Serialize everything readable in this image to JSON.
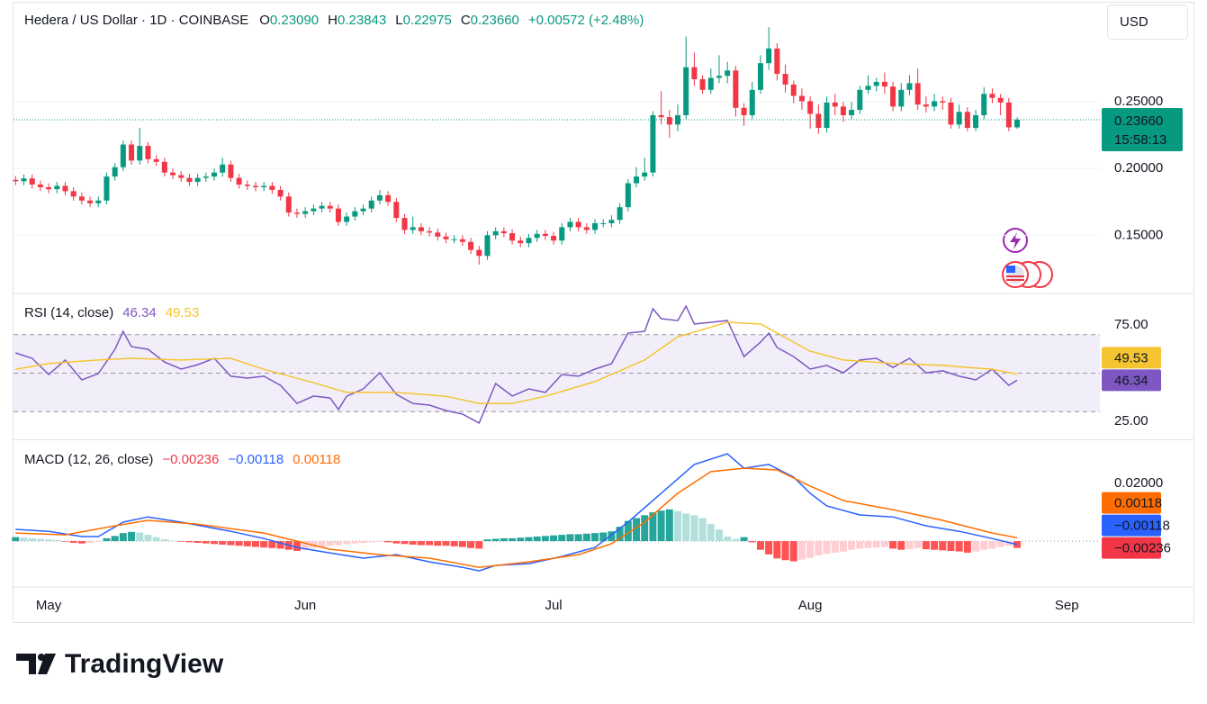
{
  "header": {
    "symbol": "Hedera / US Dollar · 1D · COINBASE",
    "open_label": "O",
    "open": "0.23090",
    "high_label": "H",
    "high": "0.23843",
    "low_label": "L",
    "low": "0.22975",
    "close_label": "C",
    "close": "0.23660",
    "change": "+0.00572 (+2.48%)"
  },
  "currency": "USD",
  "countdown": "15:58:13",
  "brand": "TradingView",
  "chart_data": [
    {
      "type": "candlestick",
      "colors": {
        "up": "#089981",
        "down": "#f23645"
      },
      "grid": true,
      "xlim": [
        -0.25,
        131
      ],
      "ylim": [
        0.107,
        0.323
      ],
      "yticks": [
        {
          "value": 0.15,
          "label": "0.15000"
        },
        {
          "value": 0.2,
          "label": "0.20000"
        },
        {
          "value": 0.25,
          "label": "0.25000"
        }
      ],
      "open": [
        0.1915,
        0.1905,
        0.1926,
        0.188,
        0.186,
        0.1845,
        0.187,
        0.183,
        0.179,
        0.176,
        0.174,
        0.176,
        0.194,
        0.201,
        0.218,
        0.206,
        0.217,
        0.207,
        0.205,
        0.197,
        0.195,
        0.193,
        0.19,
        0.193,
        0.194,
        0.197,
        0.203,
        0.193,
        0.188,
        0.187,
        0.186,
        0.187,
        0.184,
        0.179,
        0.167,
        0.166,
        0.168,
        0.17,
        0.172,
        0.17,
        0.16,
        0.164,
        0.168,
        0.17,
        0.176,
        0.18,
        0.175,
        0.163,
        0.154,
        0.156,
        0.153,
        0.152,
        0.149,
        0.147,
        0.147,
        0.145,
        0.139,
        0.1345,
        0.15,
        0.153,
        0.1515,
        0.146,
        0.144,
        0.148,
        0.151,
        0.1495,
        0.146,
        0.156,
        0.16,
        0.156,
        0.154,
        0.159,
        0.159,
        0.1615,
        0.171,
        0.189,
        0.194,
        0.197,
        0.24,
        0.2385,
        0.233,
        0.24,
        0.276,
        0.267,
        0.259,
        0.268,
        0.2695,
        0.2735,
        0.2455,
        0.24,
        0.259,
        0.279,
        0.29,
        0.271,
        0.263,
        0.2545,
        0.2505,
        0.241,
        0.2305,
        0.2495,
        0.2465,
        0.24,
        0.244,
        0.259,
        0.262,
        0.265,
        0.2615,
        0.2465,
        0.259,
        0.264,
        0.248,
        0.2465,
        0.2505,
        0.2495,
        0.233,
        0.2425,
        0.2305,
        0.24,
        0.256,
        0.253,
        0.2495,
        0.2309
      ],
      "high": [
        0.1945,
        0.1956,
        0.1956,
        0.191,
        0.189,
        0.19,
        0.19,
        0.186,
        0.182,
        0.179,
        0.179,
        0.197,
        0.204,
        0.221,
        0.221,
        0.2305,
        0.22,
        0.21,
        0.208,
        0.2,
        0.198,
        0.196,
        0.196,
        0.197,
        0.2,
        0.208,
        0.206,
        0.196,
        0.191,
        0.19,
        0.19,
        0.19,
        0.187,
        0.182,
        0.17,
        0.171,
        0.173,
        0.175,
        0.175,
        0.173,
        0.167,
        0.171,
        0.173,
        0.179,
        0.184,
        0.183,
        0.178,
        0.166,
        0.164,
        0.159,
        0.156,
        0.155,
        0.152,
        0.15,
        0.15,
        0.148,
        0.142,
        0.153,
        0.156,
        0.156,
        0.1545,
        0.149,
        0.151,
        0.154,
        0.154,
        0.1525,
        0.159,
        0.163,
        0.163,
        0.159,
        0.162,
        0.162,
        0.165,
        0.174,
        0.192,
        0.201,
        0.208,
        0.243,
        0.258,
        0.244,
        0.248,
        0.299,
        0.287,
        0.27,
        0.275,
        0.285,
        0.28,
        0.277,
        0.249,
        0.265,
        0.285,
        0.306,
        0.294,
        0.278,
        0.266,
        0.26,
        0.254,
        0.248,
        0.254,
        0.256,
        0.25,
        0.25,
        0.262,
        0.27,
        0.268,
        0.272,
        0.265,
        0.264,
        0.27,
        0.275,
        0.254,
        0.256,
        0.254,
        0.253,
        0.248,
        0.246,
        0.244,
        0.261,
        0.26,
        0.256,
        0.253,
        0.23843
      ],
      "low": [
        0.1875,
        0.1875,
        0.185,
        0.183,
        0.1815,
        0.1815,
        0.18,
        0.176,
        0.173,
        0.171,
        0.171,
        0.173,
        0.191,
        0.198,
        0.203,
        0.203,
        0.204,
        0.202,
        0.194,
        0.192,
        0.19,
        0.187,
        0.187,
        0.19,
        0.191,
        0.194,
        0.19,
        0.185,
        0.184,
        0.183,
        0.183,
        0.181,
        0.176,
        0.164,
        0.163,
        0.163,
        0.165,
        0.167,
        0.167,
        0.157,
        0.157,
        0.161,
        0.165,
        0.167,
        0.173,
        0.172,
        0.16,
        0.151,
        0.151,
        0.15,
        0.149,
        0.146,
        0.144,
        0.144,
        0.142,
        0.136,
        0.128,
        0.1315,
        0.147,
        0.1485,
        0.143,
        0.141,
        0.141,
        0.145,
        0.1465,
        0.143,
        0.143,
        0.153,
        0.153,
        0.151,
        0.151,
        0.156,
        0.156,
        0.1585,
        0.168,
        0.186,
        0.191,
        0.194,
        0.233,
        0.223,
        0.228,
        0.237,
        0.262,
        0.256,
        0.256,
        0.264,
        0.264,
        0.239,
        0.232,
        0.237,
        0.256,
        0.274,
        0.266,
        0.257,
        0.249,
        0.244,
        0.23,
        0.226,
        0.227,
        0.24,
        0.235,
        0.237,
        0.241,
        0.256,
        0.258,
        0.256,
        0.243,
        0.243,
        0.255,
        0.244,
        0.242,
        0.243,
        0.244,
        0.23,
        0.23,
        0.228,
        0.228,
        0.237,
        0.249,
        0.24,
        0.228,
        0.22975
      ],
      "close": [
        0.1905,
        0.1926,
        0.188,
        0.186,
        0.1845,
        0.187,
        0.183,
        0.179,
        0.176,
        0.174,
        0.176,
        0.194,
        0.201,
        0.218,
        0.206,
        0.217,
        0.207,
        0.205,
        0.197,
        0.195,
        0.193,
        0.19,
        0.193,
        0.194,
        0.197,
        0.203,
        0.193,
        0.188,
        0.187,
        0.186,
        0.187,
        0.184,
        0.179,
        0.167,
        0.166,
        0.168,
        0.17,
        0.172,
        0.17,
        0.16,
        0.164,
        0.168,
        0.17,
        0.176,
        0.18,
        0.175,
        0.163,
        0.154,
        0.156,
        0.153,
        0.152,
        0.149,
        0.147,
        0.147,
        0.145,
        0.139,
        0.1345,
        0.15,
        0.153,
        0.1515,
        0.146,
        0.144,
        0.148,
        0.151,
        0.1495,
        0.146,
        0.156,
        0.16,
        0.156,
        0.154,
        0.159,
        0.159,
        0.1615,
        0.171,
        0.189,
        0.194,
        0.197,
        0.24,
        0.2385,
        0.233,
        0.24,
        0.276,
        0.267,
        0.259,
        0.268,
        0.2695,
        0.2735,
        0.2455,
        0.24,
        0.259,
        0.279,
        0.29,
        0.271,
        0.263,
        0.2545,
        0.2505,
        0.241,
        0.2305,
        0.2495,
        0.2465,
        0.24,
        0.244,
        0.259,
        0.262,
        0.265,
        0.2615,
        0.2465,
        0.259,
        0.264,
        0.248,
        0.2465,
        0.2505,
        0.2495,
        0.233,
        0.2425,
        0.2305,
        0.24,
        0.256,
        0.253,
        0.2495,
        0.2309,
        0.2366
      ]
    },
    {
      "type": "indicator",
      "title": "RSI (14, close)",
      "readouts": [
        "46.34",
        "49.53"
      ],
      "grid": false,
      "xlim": [
        -0.25,
        131
      ],
      "ylim": [
        16.1,
        90.9
      ],
      "yticks": [
        {
          "value": 25,
          "label": "25.00"
        },
        {
          "value": 75,
          "label": "75.00"
        }
      ],
      "band": [
        30,
        70
      ],
      "band_color": "rgba(126,87,194,0.1)",
      "levels": [
        70,
        50,
        30
      ],
      "series": [
        {
          "style": "line",
          "color": "#7e57c2",
          "x": [
            0,
            2,
            4,
            6,
            8,
            10,
            12,
            13,
            14,
            16,
            18,
            20,
            22,
            24,
            26,
            28,
            30,
            32,
            34,
            36,
            38,
            39,
            40,
            42,
            44,
            46,
            48,
            50,
            52,
            54,
            56,
            58,
            60,
            62,
            64,
            66,
            68,
            70,
            72,
            74,
            76,
            77,
            78,
            80,
            81,
            82,
            84,
            86,
            88,
            90,
            91,
            92,
            94,
            96,
            98,
            100,
            102,
            104,
            106,
            108,
            110,
            112,
            114,
            116,
            118,
            120,
            121
          ],
          "values": [
            60.5,
            57.7,
            49.3,
            56.8,
            46.5,
            49.8,
            62.4,
            71.7,
            63.8,
            62.4,
            55.8,
            52.1,
            54.4,
            57.7,
            48.4,
            47.4,
            48.4,
            43.7,
            34.3,
            38.1,
            37.1,
            31.1,
            38,
            41.8,
            50.2,
            39,
            34.3,
            33.4,
            30.6,
            28.7,
            24.1,
            44.6,
            38.1,
            41.8,
            40,
            49.3,
            48.4,
            52.1,
            54.9,
            70.8,
            71.7,
            83.4,
            78.3,
            77.3,
            84.8,
            75.5,
            76.4,
            77.3,
            58.6,
            66.1,
            70.8,
            63.3,
            58.6,
            52.1,
            54,
            50.2,
            56.8,
            57.7,
            53,
            57.7,
            50.2,
            51.2,
            48.4,
            46.5,
            52.1,
            43.7,
            46.34
          ]
        },
        {
          "style": "line",
          "color": "#f5c431",
          "x": [
            0,
            4,
            10,
            14,
            20,
            26,
            30,
            36,
            40,
            46,
            52,
            56,
            60,
            64,
            70,
            76,
            80,
            86,
            90,
            96,
            100,
            106,
            112,
            118,
            121
          ],
          "values": [
            52,
            55,
            56.8,
            57.7,
            56.8,
            57.7,
            52,
            45,
            40,
            40,
            38,
            34.3,
            34.3,
            38,
            45.6,
            56.8,
            68.9,
            76.4,
            75.5,
            61.4,
            56.8,
            55,
            54,
            52,
            49.53
          ]
        }
      ]
    },
    {
      "type": "indicator",
      "title": "MACD (12, 26, close)",
      "readouts": [
        "−0.00236",
        "−0.00118",
        "0.00118"
      ],
      "grid": false,
      "xlim": [
        -0.25,
        131
      ],
      "ylim": [
        -0.0159,
        0.0347
      ],
      "yticks": [
        {
          "value": 0.02,
          "label": "0.02000"
        }
      ],
      "levels": [
        0
      ],
      "xticks": [
        {
          "value": 4,
          "label": "May"
        },
        {
          "value": 35,
          "label": "Jun"
        },
        {
          "value": 65,
          "label": "Jul"
        },
        {
          "value": 96,
          "label": "Aug"
        },
        {
          "value": 127,
          "label": "Sep"
        }
      ],
      "series": [
        {
          "style": "histogram",
          "color": "#f23645",
          "colors": [
            "#26a69a",
            "#b2dfdb",
            "#ffcdd2",
            "#ff5252"
          ],
          "values": [
            0.0014,
            0.0012,
            0.001,
            0.0008,
            0.0006,
            0.0004,
            -0.0002,
            -0.0006,
            -0.0008,
            -0.0006,
            -0.0002,
            0.001,
            0.0018,
            0.0028,
            0.0032,
            0.003,
            0.0022,
            0.0014,
            0.0006,
            0.0002,
            -0.0002,
            -0.0004,
            -0.0006,
            -0.0008,
            -0.001,
            -0.0012,
            -0.0014,
            -0.0016,
            -0.0018,
            -0.002,
            -0.0022,
            -0.0024,
            -0.0026,
            -0.003,
            -0.0034,
            -0.003,
            -0.0024,
            -0.002,
            -0.0016,
            -0.0014,
            -0.001,
            -0.0008,
            -0.0006,
            -0.0004,
            -0.0002,
            -0.0004,
            -0.0008,
            -0.001,
            -0.0012,
            -0.0014,
            -0.0014,
            -0.0016,
            -0.0016,
            -0.0018,
            -0.002,
            -0.0024,
            -0.0026,
            0.0006,
            0.0008,
            0.001,
            0.001,
            0.0012,
            0.0014,
            0.0016,
            0.0018,
            0.002,
            0.0022,
            0.0024,
            0.0024,
            0.0026,
            0.0028,
            0.003,
            0.0034,
            0.005,
            0.007,
            0.008,
            0.009,
            0.01,
            0.0106,
            0.011,
            0.0104,
            0.0096,
            0.009,
            0.008,
            0.006,
            0.004,
            0.0016,
            0.0008,
            0.0014,
            -0.0004,
            -0.003,
            -0.0046,
            -0.006,
            -0.0066,
            -0.007,
            -0.0064,
            -0.0058,
            -0.005,
            -0.0044,
            -0.004,
            -0.0036,
            -0.003,
            -0.0026,
            -0.0024,
            -0.0022,
            -0.002,
            -0.0026,
            -0.003,
            -0.0028,
            -0.0024,
            -0.0028,
            -0.003,
            -0.0032,
            -0.0034,
            -0.0036,
            -0.004,
            -0.0036,
            -0.003,
            -0.0026,
            -0.002,
            -0.0016,
            -0.00236
          ]
        },
        {
          "style": "line",
          "color": "#2962ff",
          "x": [
            0,
            4,
            8,
            10,
            13,
            16,
            20,
            26,
            30,
            34,
            38,
            42,
            46,
            50,
            54,
            56,
            58,
            62,
            66,
            70,
            74,
            78,
            82,
            86,
            88,
            91,
            94,
            96,
            98,
            102,
            106,
            110,
            114,
            118,
            121
          ],
          "values": [
            0.0041,
            0.0034,
            0.0016,
            0.0016,
            0.0066,
            0.0084,
            0.0066,
            0.0034,
            0.0009,
            -0.0022,
            -0.0041,
            -0.0059,
            -0.0047,
            -0.0072,
            -0.0091,
            -0.0103,
            -0.0084,
            -0.0078,
            -0.0053,
            -0.0022,
            0.0066,
            0.0166,
            0.0266,
            0.0303,
            0.0253,
            0.0266,
            0.0222,
            0.0166,
            0.0122,
            0.0091,
            0.0084,
            0.0053,
            0.0034,
            0.0009,
            -0.00118
          ]
        },
        {
          "style": "line",
          "color": "#ff6d00",
          "x": [
            0,
            6,
            12,
            16,
            22,
            30,
            38,
            44,
            50,
            56,
            62,
            68,
            72,
            76,
            80,
            84,
            88,
            92,
            96,
            100,
            106,
            112,
            118,
            121
          ],
          "values": [
            0.0028,
            0.0022,
            0.0053,
            0.0072,
            0.0059,
            0.0028,
            -0.0028,
            -0.0047,
            -0.0059,
            -0.0091,
            -0.0072,
            -0.0047,
            -0.0009,
            0.0066,
            0.0166,
            0.0241,
            0.0253,
            0.0247,
            0.0191,
            0.0141,
            0.0109,
            0.0072,
            0.0028,
            0.00118
          ]
        }
      ]
    }
  ]
}
